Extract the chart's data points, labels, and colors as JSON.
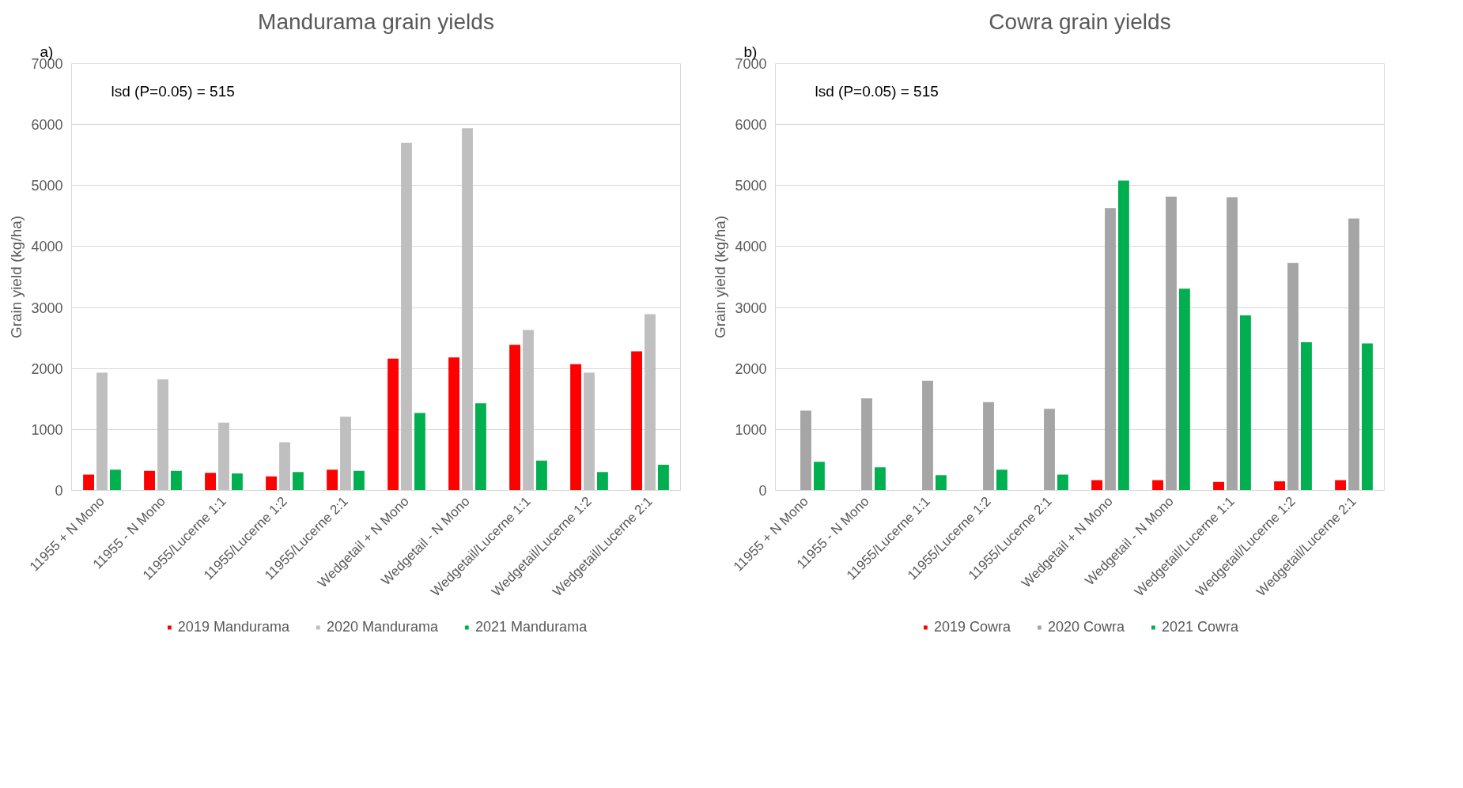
{
  "chart_data": [
    {
      "type": "bar",
      "title": "Mandurama grain yields",
      "ylabel": "Grain yield (kg/ha)",
      "categories": [
        "11955 + N Mono",
        "11955 - N Mono",
        "11955/Lucerne 1:1",
        "11955/Lucerne 1:2",
        "11955/Lucerne 2:1",
        "Wedgetail + N Mono",
        "Wedgetail - N Mono",
        "Wedgetail/Lucerne 1:1",
        "Wedgetail/Lucerne 1:2",
        "Wedgetail/Lucerne 2:1"
      ],
      "series": [
        {
          "name": "2019 Mandurama",
          "color": "#ff0000",
          "values": [
            260,
            320,
            290,
            230,
            340,
            2160,
            2180,
            2390,
            2070,
            2280
          ]
        },
        {
          "name": "2020 Mandurama",
          "color": "#bfbfbf",
          "values": [
            1930,
            1820,
            1110,
            790,
            1210,
            5700,
            5940,
            2630,
            1930,
            2890
          ]
        },
        {
          "name": "2021 Mandurama",
          "color": "#00b050",
          "values": [
            340,
            320,
            280,
            300,
            320,
            1270,
            1430,
            490,
            300,
            420
          ]
        }
      ],
      "ylim": [
        0,
        7000
      ],
      "yticks": [
        0,
        1000,
        2000,
        3000,
        4000,
        5000,
        6000,
        7000
      ],
      "grid": "y",
      "legend": "bottom",
      "annotations": [
        "a)",
        "lsd (P=0.05) = 515"
      ]
    },
    {
      "type": "bar",
      "title": "Cowra grain yields",
      "ylabel": "Grain yield (kg/ha)",
      "categories": [
        "11955 + N Mono",
        "11955 - N Mono",
        "11955/Lucerne 1:1",
        "11955/Lucerne 1:2",
        "11955/Lucerne 2:1",
        "Wedgetail + N Mono",
        "Wedgetail - N Mono",
        "Wedgetail/Lucerne 1:1",
        "Wedgetail/Lucerne 1:2",
        "Wedgetail/Lucerne 2:1"
      ],
      "series": [
        {
          "name": "2019 Cowra",
          "color": "#ff0000",
          "values": [
            null,
            null,
            null,
            null,
            null,
            170,
            170,
            140,
            150,
            170
          ]
        },
        {
          "name": "2020 Cowra",
          "color": "#a5a5a5",
          "values": [
            1310,
            1510,
            1800,
            1450,
            1340,
            4630,
            4820,
            4810,
            3730,
            4460
          ]
        },
        {
          "name": "2021 Cowra",
          "color": "#00b050",
          "values": [
            470,
            380,
            250,
            340,
            260,
            5080,
            3310,
            2870,
            2430,
            2410
          ]
        }
      ],
      "ylim": [
        0,
        7000
      ],
      "yticks": [
        0,
        1000,
        2000,
        3000,
        4000,
        5000,
        6000,
        7000
      ],
      "grid": "y",
      "legend": "bottom",
      "annotations": [
        "b)",
        "lsd (P=0.05) = 515"
      ]
    }
  ]
}
